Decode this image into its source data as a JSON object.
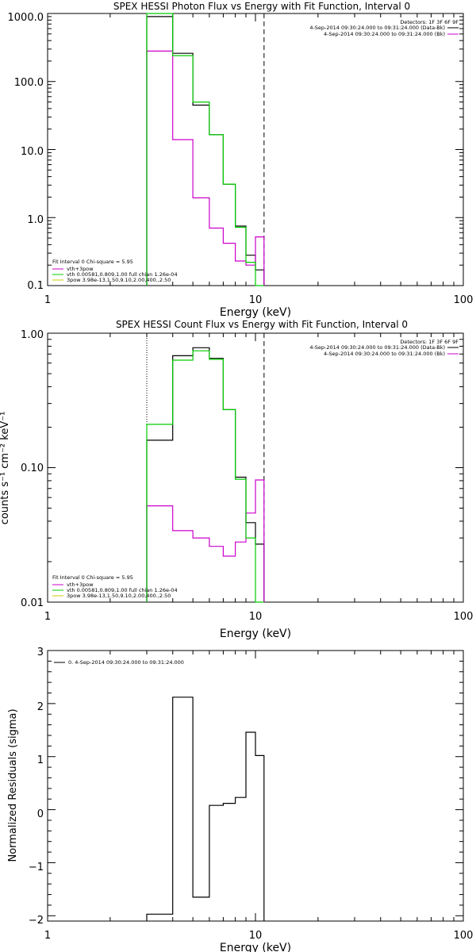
{
  "colors": {
    "data": "#000000",
    "bk": "#cc00cc",
    "fit": "#00cc00",
    "comp2": "#cccc00",
    "axis": "#000000"
  },
  "chart_data": [
    {
      "type": "line",
      "title": "SPEX HESSI Photon Flux vs Energy with Fit Function, Interval 0",
      "xlabel": "Energy (keV)",
      "ylabel": "",
      "xscale": "log",
      "yscale": "log",
      "xlim": [
        1,
        100
      ],
      "ylim": [
        0.1,
        1000
      ],
      "xticks": [
        "1",
        "10",
        "100"
      ],
      "yticks": [
        "0.1",
        "1.0",
        "10.0",
        "100.0",
        "1000.0"
      ],
      "vlines": {
        "dotted": 3,
        "dashed": 11
      },
      "legend_right": {
        "header": "Detectors: 1F 3F 6F 9F",
        "rows": [
          "4-Sep-2014 09:30:24.000 to 09:31:24.000 (Data-Bk)",
          "4-Sep-2014 09:30:24.000 to 09:31:24.000 (Bk)"
        ]
      },
      "legend_left": {
        "header": "Fit Interval 0   Chi-square = 5.95",
        "rows": [
          "vth+3pow",
          "vth 0.00581,0.809,1.00  full chian 1.26e-04",
          "3pow 3.98e-13,1.50,9.10,2.00,400.,2.50"
        ]
      },
      "edges": [
        3,
        4,
        5,
        6,
        7,
        8,
        9,
        10,
        11
      ],
      "series": [
        {
          "color": "data",
          "values": [
            900,
            260,
            45,
            16.5,
            3.1,
            0.75,
            0.28,
            0.17
          ]
        },
        {
          "color": "bk",
          "values": [
            280,
            14,
            1.95,
            0.7,
            0.42,
            0.23,
            0.2,
            0.52
          ]
        },
        {
          "color": "fit",
          "values": [
            1500,
            240,
            50,
            16.5,
            3.1,
            0.72,
            0.22,
            0.05
          ]
        }
      ]
    },
    {
      "type": "line",
      "title": "SPEX HESSI Count Flux vs Energy with Fit Function, Interval 0",
      "xlabel": "Energy (keV)",
      "ylabel": "counts s⁻¹ cm⁻² keV⁻¹",
      "xscale": "log",
      "yscale": "log",
      "xlim": [
        1,
        100
      ],
      "ylim": [
        0.01,
        1
      ],
      "xticks": [
        "1",
        "10",
        "100"
      ],
      "yticks": [
        "0.01",
        "0.10",
        "1.00"
      ],
      "vlines": {
        "dotted": 3,
        "dashed": 11
      },
      "legend_right": {
        "header": "Detectors: 1F 3F 6F 9F",
        "rows": [
          "4-Sep-2014 09:30:24.000 to 09:31:24.000 (Data-Bk)",
          "4-Sep-2014 09:30:24.000 to 09:31:24.000 (Bk)"
        ]
      },
      "legend_left": {
        "header": "Fit Interval 0   Chi-square = 5.95",
        "rows": [
          "vth+3pow",
          "vth 0.00581,0.809,1.00  full chian 1.26e-04",
          "3pow 3.98e-13,1.50,9.10,2.00,400.,2.50"
        ]
      },
      "edges": [
        3,
        4,
        5,
        6,
        7,
        8,
        9,
        10,
        11
      ],
      "series": [
        {
          "color": "data",
          "values": [
            0.16,
            0.68,
            0.78,
            0.65,
            0.27,
            0.085,
            0.039,
            0.027
          ]
        },
        {
          "color": "bk",
          "values": [
            0.052,
            0.034,
            0.03,
            0.026,
            0.022,
            0.028,
            0.046,
            0.081
          ]
        },
        {
          "color": "fit",
          "values": [
            0.21,
            0.63,
            0.74,
            0.64,
            0.27,
            0.082,
            0.03,
            0.005
          ]
        }
      ]
    },
    {
      "type": "line",
      "title": "",
      "xlabel": "Energy (keV)",
      "ylabel": "Normalized Residuals (sigma)",
      "xscale": "log",
      "yscale": "linear",
      "xlim": [
        1,
        100
      ],
      "ylim": [
        -2.1,
        3
      ],
      "xticks": [
        "1",
        "10",
        "100"
      ],
      "yticks": [
        "−2",
        "−1",
        "0",
        "1",
        "2",
        "3"
      ],
      "legend_left": {
        "rows": [
          "0.  4-Sep-2014 09:30:24.000 to 09:31:24.000"
        ]
      },
      "edges": [
        3,
        4,
        5,
        6,
        7,
        8,
        9,
        10,
        11
      ],
      "series": [
        {
          "color": "data",
          "values": [
            -1.97,
            2.12,
            -1.65,
            0.08,
            0.12,
            0.23,
            1.46,
            1.02
          ]
        }
      ]
    }
  ]
}
